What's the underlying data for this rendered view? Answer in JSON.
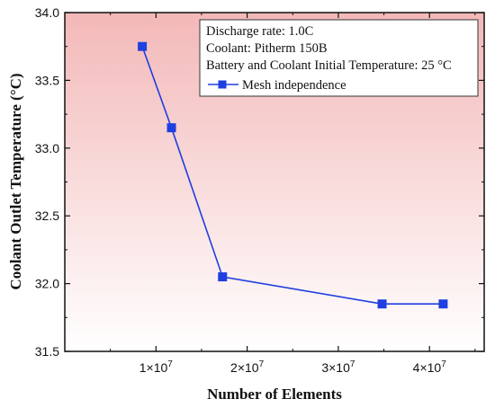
{
  "chart_data": {
    "type": "line",
    "xlabel": "Number of Elements",
    "ylabel": "Coolant Outlet Temperature (°C)",
    "xlim": [
      0,
      46000000
    ],
    "ylim": [
      31.5,
      34.0
    ],
    "x_ticks": [
      {
        "value": 10000000,
        "label": "1×10",
        "exp": "7"
      },
      {
        "value": 20000000,
        "label": "2×10",
        "exp": "7"
      },
      {
        "value": 30000000,
        "label": "3×10",
        "exp": "7"
      },
      {
        "value": 40000000,
        "label": "4×10",
        "exp": "7"
      }
    ],
    "y_ticks": [
      {
        "value": 31.5,
        "label": "31.5"
      },
      {
        "value": 32.0,
        "label": "32.0"
      },
      {
        "value": 32.5,
        "label": "32.5"
      },
      {
        "value": 33.0,
        "label": "33.0"
      },
      {
        "value": 33.5,
        "label": "33.5"
      },
      {
        "value": 34.0,
        "label": "34.0"
      }
    ],
    "series": [
      {
        "name": "Mesh independence",
        "color": "#1f3fe0",
        "marker": "square",
        "x": [
          8500000,
          11700000,
          17300000,
          34800000,
          41500000
        ],
        "y": [
          33.75,
          33.15,
          32.05,
          31.85,
          31.85
        ]
      }
    ],
    "annotations": [
      "Discharge rate: 1.0C",
      "Coolant: Pitherm 150B",
      "Battery and Coolant Initial Temperature: 25 °C"
    ],
    "legend_position": "top-right",
    "grid": false,
    "background_gradient": [
      "#f3b8b8",
      "#ffffff"
    ]
  }
}
